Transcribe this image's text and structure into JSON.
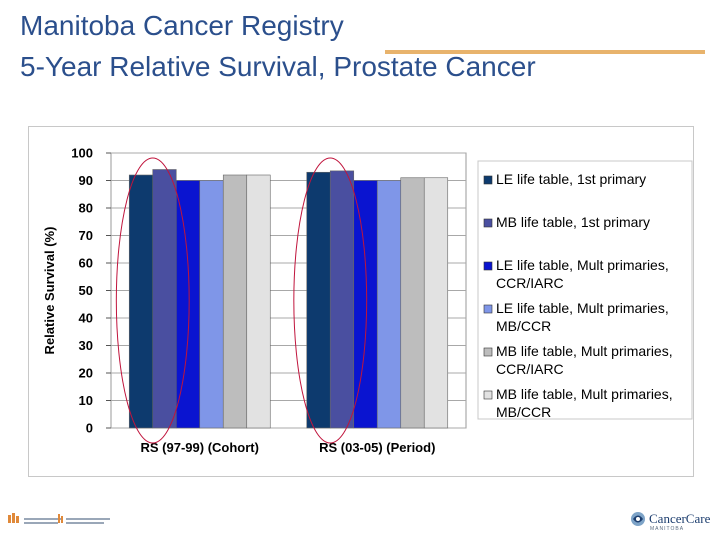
{
  "slide": {
    "title_line1": "Manitoba Cancer Registry",
    "title_line2": "5-Year Relative Survival, Prostate Cancer",
    "accent_color": "#e8b36c",
    "title_color": "#2b4f8c"
  },
  "footer": {
    "logo_right_text": "CancerCare",
    "logo_right_subtext": "MANITOBA",
    "logo_left_icon": "partnership-logo-icon",
    "logo_right_icon": "cancercare-logo-icon"
  },
  "chart_data": {
    "type": "bar",
    "title": "",
    "ylabel": "Relative Survival (%)",
    "xlabel": "",
    "ylim": [
      0,
      100
    ],
    "yticks": [
      0,
      10,
      20,
      30,
      40,
      50,
      60,
      70,
      80,
      90,
      100
    ],
    "grid": "horizontal",
    "legend_position": "right",
    "categories": [
      "RS (97-99) (Cohort)",
      "RS (03-05) (Period)"
    ],
    "series": [
      {
        "name": "LE life table, 1st primary",
        "color": "#0d3a6e",
        "values": [
          92,
          93
        ]
      },
      {
        "name": "MB life table, 1st primary",
        "color": "#4a4fa0",
        "values": [
          94,
          93.5
        ]
      },
      {
        "name": "LE life table, Mult primaries, CCR/IARC",
        "color": "#0a14d0",
        "values": [
          90,
          90
        ]
      },
      {
        "name": "LE life table, Mult primaries, MB/CCR",
        "color": "#7f96e8",
        "values": [
          90,
          90
        ]
      },
      {
        "name": "MB life table, Mult primaries, CCR/IARC",
        "color": "#bdbdbd",
        "values": [
          92,
          91
        ]
      },
      {
        "name": "MB life table, Mult primaries, MB/CCR",
        "color": "#e2e2e2",
        "values": [
          92,
          91
        ]
      }
    ],
    "legend_lines": [
      [
        "LE life table, 1st primary"
      ],
      [
        "MB life table, 1st primary"
      ],
      [
        "LE life table, Mult primaries,",
        "CCR/IARC"
      ],
      [
        "LE life table, Mult primaries,",
        "MB/CCR"
      ],
      [
        "MB life table, Mult primaries,",
        "CCR/IARC"
      ],
      [
        "MB life table, Mult primaries,",
        "MB/CCR"
      ]
    ],
    "annotations": [
      {
        "type": "ellipse",
        "target": "first two bars of each category",
        "color": "#c0143c"
      }
    ]
  }
}
